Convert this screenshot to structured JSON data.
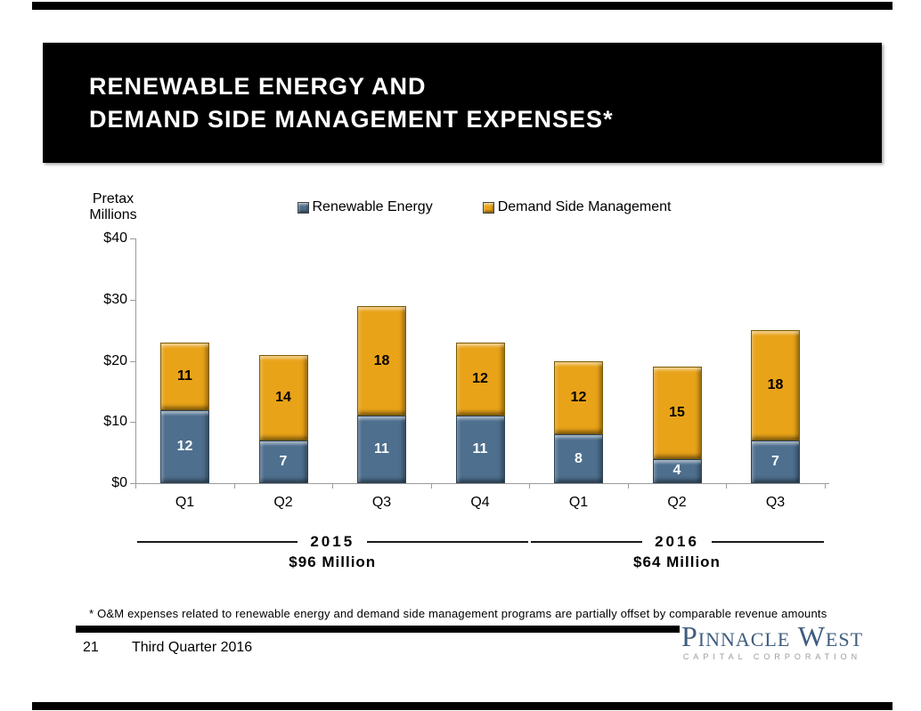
{
  "slide": {
    "title_line1": "RENEWABLE ENERGY AND",
    "title_line2": "DEMAND SIDE MANAGEMENT EXPENSES*",
    "footnote": "* O&M expenses related to renewable energy and demand side management programs are partially offset by comparable revenue amounts",
    "page_number": "21",
    "footer_text": "Third Quarter 2016",
    "logo_name": "Pinnacle West",
    "logo_tagline": "CAPITAL CORPORATION",
    "logo_color": "#3e5c7e"
  },
  "chart_data": {
    "type": "bar",
    "stacked": true,
    "title": "",
    "ylabel": "Pretax Millions",
    "ylabel_lines": [
      "Pretax",
      "Millions"
    ],
    "xlabel": "",
    "ylim": [
      0,
      40
    ],
    "ytick_step": 10,
    "ytick_labels": [
      "$0",
      "$10",
      "$20",
      "$30",
      "$40"
    ],
    "grid": false,
    "legend_position": "top",
    "categories": [
      "Q1",
      "Q2",
      "Q3",
      "Q4",
      "Q1",
      "Q2",
      "Q3"
    ],
    "series": [
      {
        "name": "Renewable Energy",
        "color": "#4e6f8e",
        "label_color": "#ffffff",
        "values": [
          12,
          7,
          11,
          11,
          8,
          4,
          7
        ]
      },
      {
        "name": "Demand Side Management",
        "color": "#e9a318",
        "label_color": "#000000",
        "values": [
          11,
          14,
          18,
          12,
          12,
          15,
          18
        ]
      }
    ],
    "groups": [
      {
        "label": "2015",
        "sublabel": "$96 Million",
        "span": [
          0,
          3
        ]
      },
      {
        "label": "2016",
        "sublabel": "$64 Million",
        "span": [
          4,
          6
        ]
      }
    ]
  }
}
